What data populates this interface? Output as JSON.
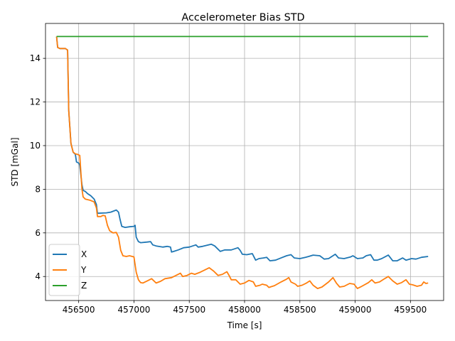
{
  "chart_data": {
    "type": "line",
    "title": "Accelerometer Bias STD",
    "xlabel": "Time [s]",
    "ylabel": "STD [mGal]",
    "xlim": [
      456200,
      459800
    ],
    "ylim": [
      2.9,
      15.6
    ],
    "xticks": [
      456500,
      457000,
      457500,
      458000,
      458500,
      459000,
      459500
    ],
    "yticks": [
      4,
      6,
      8,
      10,
      12,
      14
    ],
    "grid": true,
    "legend_position": "lower-left",
    "series": [
      {
        "name": "X",
        "color": "#1f77b4",
        "points": [
          [
            456300,
            15.0
          ],
          [
            456310,
            14.5
          ],
          [
            456330,
            14.45
          ],
          [
            456380,
            14.45
          ],
          [
            456400,
            14.38
          ],
          [
            456410,
            11.6
          ],
          [
            456430,
            10.1
          ],
          [
            456450,
            9.7
          ],
          [
            456470,
            9.6
          ],
          [
            456480,
            9.25
          ],
          [
            456500,
            9.2
          ],
          [
            456510,
            9.1
          ],
          [
            456530,
            8.2
          ],
          [
            456540,
            7.95
          ],
          [
            456560,
            7.9
          ],
          [
            456580,
            7.8
          ],
          [
            456610,
            7.7
          ],
          [
            456640,
            7.55
          ],
          [
            456660,
            7.3
          ],
          [
            456670,
            6.9
          ],
          [
            456750,
            6.92
          ],
          [
            456790,
            6.95
          ],
          [
            456840,
            7.05
          ],
          [
            456860,
            6.95
          ],
          [
            456875,
            6.6
          ],
          [
            456890,
            6.3
          ],
          [
            456920,
            6.25
          ],
          [
            456960,
            6.28
          ],
          [
            457000,
            6.3
          ],
          [
            457010,
            6.35
          ],
          [
            457020,
            5.8
          ],
          [
            457040,
            5.6
          ],
          [
            457060,
            5.55
          ],
          [
            457120,
            5.58
          ],
          [
            457150,
            5.6
          ],
          [
            457170,
            5.45
          ],
          [
            457200,
            5.4
          ],
          [
            457260,
            5.35
          ],
          [
            457300,
            5.38
          ],
          [
            457330,
            5.35
          ],
          [
            457340,
            5.12
          ],
          [
            457360,
            5.15
          ],
          [
            457400,
            5.22
          ],
          [
            457450,
            5.32
          ],
          [
            457500,
            5.35
          ],
          [
            457560,
            5.45
          ],
          [
            457580,
            5.35
          ],
          [
            457620,
            5.38
          ],
          [
            457700,
            5.48
          ],
          [
            457730,
            5.4
          ],
          [
            457780,
            5.15
          ],
          [
            457820,
            5.22
          ],
          [
            457880,
            5.22
          ],
          [
            457940,
            5.32
          ],
          [
            457960,
            5.2
          ],
          [
            457980,
            5.02
          ],
          [
            458020,
            5.0
          ],
          [
            458070,
            5.05
          ],
          [
            458100,
            4.75
          ],
          [
            458130,
            4.82
          ],
          [
            458170,
            4.85
          ],
          [
            458200,
            4.88
          ],
          [
            458230,
            4.72
          ],
          [
            458280,
            4.75
          ],
          [
            458330,
            4.85
          ],
          [
            458380,
            4.95
          ],
          [
            458420,
            5.0
          ],
          [
            458450,
            4.85
          ],
          [
            458500,
            4.82
          ],
          [
            458550,
            4.88
          ],
          [
            458580,
            4.92
          ],
          [
            458620,
            4.98
          ],
          [
            458680,
            4.95
          ],
          [
            458720,
            4.8
          ],
          [
            458760,
            4.82
          ],
          [
            458820,
            5.02
          ],
          [
            458850,
            4.85
          ],
          [
            458900,
            4.82
          ],
          [
            458960,
            4.9
          ],
          [
            458980,
            4.95
          ],
          [
            459020,
            4.82
          ],
          [
            459070,
            4.85
          ],
          [
            459100,
            4.95
          ],
          [
            459140,
            5.0
          ],
          [
            459170,
            4.75
          ],
          [
            459200,
            4.75
          ],
          [
            459240,
            4.82
          ],
          [
            459300,
            4.98
          ],
          [
            459340,
            4.72
          ],
          [
            459380,
            4.72
          ],
          [
            459430,
            4.85
          ],
          [
            459460,
            4.75
          ],
          [
            459510,
            4.82
          ],
          [
            459550,
            4.8
          ],
          [
            459600,
            4.88
          ],
          [
            459660,
            4.92
          ]
        ]
      },
      {
        "name": "Y",
        "color": "#ff7f0e",
        "points": [
          [
            456300,
            15.0
          ],
          [
            456310,
            14.5
          ],
          [
            456330,
            14.45
          ],
          [
            456380,
            14.45
          ],
          [
            456400,
            14.38
          ],
          [
            456410,
            11.6
          ],
          [
            456430,
            10.1
          ],
          [
            456450,
            9.7
          ],
          [
            456470,
            9.62
          ],
          [
            456490,
            9.6
          ],
          [
            456510,
            9.55
          ],
          [
            456530,
            8.0
          ],
          [
            456540,
            7.65
          ],
          [
            456560,
            7.55
          ],
          [
            456600,
            7.5
          ],
          [
            456640,
            7.42
          ],
          [
            456660,
            7.15
          ],
          [
            456670,
            6.75
          ],
          [
            456700,
            6.75
          ],
          [
            456720,
            6.8
          ],
          [
            456740,
            6.78
          ],
          [
            456760,
            6.35
          ],
          [
            456780,
            6.1
          ],
          [
            456810,
            6.0
          ],
          [
            456840,
            6.02
          ],
          [
            456860,
            5.8
          ],
          [
            456880,
            5.2
          ],
          [
            456900,
            4.95
          ],
          [
            456930,
            4.92
          ],
          [
            456960,
            4.95
          ],
          [
            457000,
            4.9
          ],
          [
            457020,
            4.2
          ],
          [
            457040,
            3.85
          ],
          [
            457060,
            3.72
          ],
          [
            457080,
            3.7
          ],
          [
            457120,
            3.8
          ],
          [
            457160,
            3.9
          ],
          [
            457200,
            3.7
          ],
          [
            457240,
            3.78
          ],
          [
            457280,
            3.9
          ],
          [
            457340,
            3.95
          ],
          [
            457380,
            4.05
          ],
          [
            457420,
            4.15
          ],
          [
            457440,
            4.0
          ],
          [
            457480,
            4.05
          ],
          [
            457520,
            4.15
          ],
          [
            457550,
            4.1
          ],
          [
            457600,
            4.2
          ],
          [
            457680,
            4.4
          ],
          [
            457720,
            4.25
          ],
          [
            457760,
            4.05
          ],
          [
            457800,
            4.1
          ],
          [
            457840,
            4.22
          ],
          [
            457860,
            4.05
          ],
          [
            457880,
            3.85
          ],
          [
            457920,
            3.85
          ],
          [
            457960,
            3.65
          ],
          [
            458000,
            3.7
          ],
          [
            458040,
            3.82
          ],
          [
            458080,
            3.75
          ],
          [
            458100,
            3.55
          ],
          [
            458140,
            3.6
          ],
          [
            458160,
            3.65
          ],
          [
            458200,
            3.6
          ],
          [
            458220,
            3.5
          ],
          [
            458270,
            3.58
          ],
          [
            458330,
            3.75
          ],
          [
            458380,
            3.88
          ],
          [
            458400,
            3.95
          ],
          [
            458420,
            3.75
          ],
          [
            458460,
            3.65
          ],
          [
            458480,
            3.55
          ],
          [
            458520,
            3.6
          ],
          [
            458560,
            3.7
          ],
          [
            458590,
            3.8
          ],
          [
            458620,
            3.6
          ],
          [
            458660,
            3.45
          ],
          [
            458700,
            3.52
          ],
          [
            458760,
            3.75
          ],
          [
            458800,
            3.95
          ],
          [
            458830,
            3.7
          ],
          [
            458860,
            3.52
          ],
          [
            458900,
            3.55
          ],
          [
            458950,
            3.68
          ],
          [
            458990,
            3.65
          ],
          [
            459020,
            3.45
          ],
          [
            459060,
            3.55
          ],
          [
            459120,
            3.72
          ],
          [
            459150,
            3.85
          ],
          [
            459180,
            3.7
          ],
          [
            459220,
            3.75
          ],
          [
            459260,
            3.88
          ],
          [
            459300,
            4.0
          ],
          [
            459340,
            3.8
          ],
          [
            459380,
            3.65
          ],
          [
            459420,
            3.72
          ],
          [
            459460,
            3.85
          ],
          [
            459490,
            3.65
          ],
          [
            459520,
            3.62
          ],
          [
            459560,
            3.55
          ],
          [
            459600,
            3.6
          ],
          [
            459620,
            3.75
          ],
          [
            459640,
            3.68
          ],
          [
            459660,
            3.7
          ]
        ]
      },
      {
        "name": "Z",
        "color": "#2ca02c",
        "points": [
          [
            456300,
            15.0
          ],
          [
            459660,
            15.0
          ]
        ]
      }
    ]
  }
}
